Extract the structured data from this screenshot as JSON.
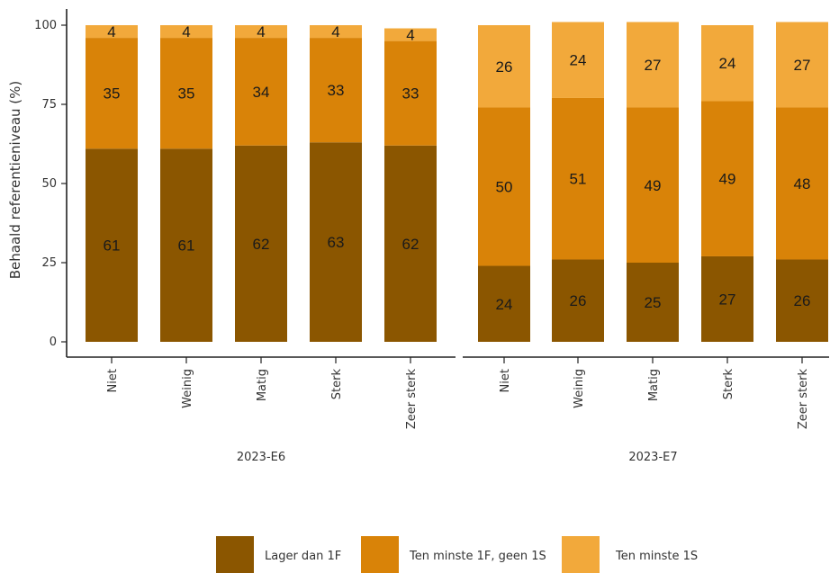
{
  "chart_data": {
    "type": "bar",
    "stacked": true,
    "ylabel": "Behaald referentieniveau (%)",
    "ylim": [
      0,
      100
    ],
    "yticks": [
      0,
      25,
      50,
      75,
      100
    ],
    "categories": [
      "Niet",
      "Weinig",
      "Matig",
      "Sterk",
      "Zeer sterk"
    ],
    "legend_position": "bottom",
    "series": [
      {
        "name": "Lager dan 1F",
        "color": "#8B5600"
      },
      {
        "name": "Ten minste 1F, geen 1S",
        "color": "#D98308"
      },
      {
        "name": "Ten minste 1S",
        "color": "#F2A93B"
      }
    ],
    "groups": [
      {
        "name": "2023-E6",
        "values": [
          [
            61,
            35,
            4
          ],
          [
            61,
            35,
            4
          ],
          [
            62,
            34,
            4
          ],
          [
            63,
            33,
            4
          ],
          [
            62,
            33,
            4
          ]
        ]
      },
      {
        "name": "2023-E7",
        "values": [
          [
            24,
            50,
            26
          ],
          [
            26,
            51,
            24
          ],
          [
            25,
            49,
            27
          ],
          [
            27,
            49,
            24
          ],
          [
            26,
            48,
            27
          ]
        ]
      }
    ]
  }
}
